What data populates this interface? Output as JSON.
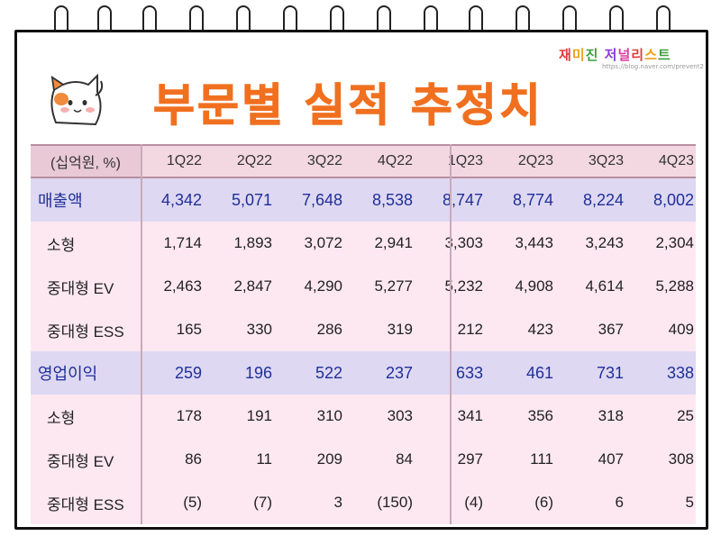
{
  "title": "부문별 실적 추정치",
  "brand": {
    "name": "재미진 저널리스트",
    "sub": "https://blog.naver.com/prevent2"
  },
  "brand_colors": [
    "#e23b3b",
    "#f0a020",
    "#3ca03c",
    "#2a6fd6",
    "#8a3ad6",
    "#d63aa0"
  ],
  "table": {
    "unit_label": "(십억원, %)",
    "columns": [
      "1Q22",
      "2Q22",
      "3Q22",
      "4Q22",
      "1Q23",
      "2Q23",
      "3Q23",
      "4Q23"
    ],
    "rows": [
      {
        "label": "매출액",
        "kind": "main",
        "values": [
          "4,342",
          "5,071",
          "7,648",
          "8,538",
          "8,747",
          "8,774",
          "8,224",
          "8,002"
        ]
      },
      {
        "label": "소형",
        "kind": "sub",
        "values": [
          "1,714",
          "1,893",
          "3,072",
          "2,941",
          "3,303",
          "3,443",
          "3,243",
          "2,304"
        ]
      },
      {
        "label": "중대형 EV",
        "kind": "sub",
        "values": [
          "2,463",
          "2,847",
          "4,290",
          "5,277",
          "5,232",
          "4,908",
          "4,614",
          "5,288"
        ]
      },
      {
        "label": "중대형 ESS",
        "kind": "sub",
        "values": [
          "165",
          "330",
          "286",
          "319",
          "212",
          "423",
          "367",
          "409"
        ]
      },
      {
        "label": "영업이익",
        "kind": "main",
        "values": [
          "259",
          "196",
          "522",
          "237",
          "633",
          "461",
          "731",
          "338"
        ]
      },
      {
        "label": "소형",
        "kind": "sub",
        "values": [
          "178",
          "191",
          "310",
          "303",
          "341",
          "356",
          "318",
          "25"
        ]
      },
      {
        "label": "중대형 EV",
        "kind": "sub",
        "values": [
          "86",
          "11",
          "209",
          "84",
          "297",
          "111",
          "407",
          "308"
        ]
      },
      {
        "label": "중대형 ESS",
        "kind": "sub",
        "values": [
          "(5)",
          "(7)",
          "3",
          "(150)",
          "(4)",
          "(6)",
          "6",
          "5"
        ]
      }
    ]
  },
  "colors": {
    "title": "#f07020",
    "main_row_bg": "#ded8f2",
    "main_row_text": "#1f2f9a",
    "sub_row_bg": "#fde8f1",
    "header_bg": "#f3d8e2"
  }
}
